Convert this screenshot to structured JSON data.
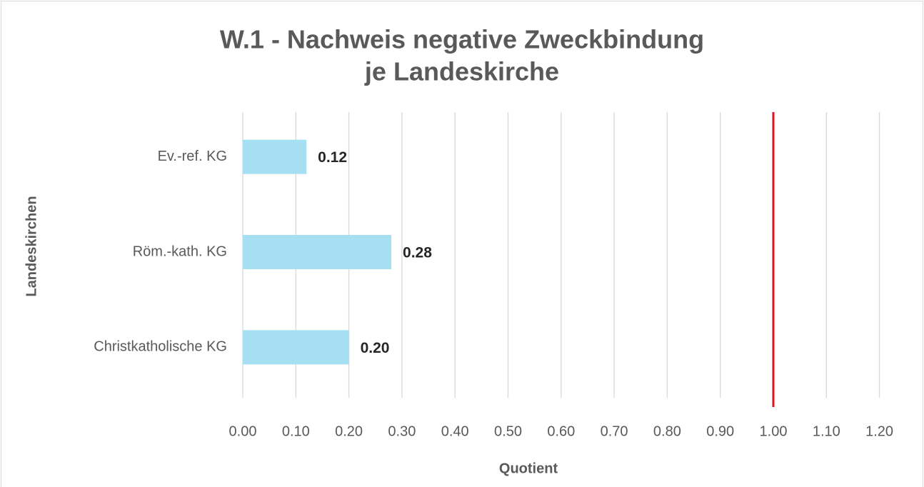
{
  "chart_data": {
    "type": "hbar",
    "title": [
      "W.1 - Nachweis negative Zweckbindung",
      "je Landeskirche"
    ],
    "x_label": "Quotient",
    "y_label": "Landeskirchen",
    "categories": [
      "Ev.-ref. KG",
      "Röm.-kath. KG",
      "Christkatholische KG"
    ],
    "values": [
      0.12,
      0.28,
      0.2
    ],
    "value_labels": [
      "0.12",
      "0.28",
      "0.20"
    ],
    "color": "#a6dff2",
    "xlim": [
      0,
      1.2
    ],
    "xticks": [
      {
        "value": 0,
        "label": "0.00"
      },
      {
        "value": 0.1,
        "label": "0.10"
      },
      {
        "value": 0.2,
        "label": "0.20"
      },
      {
        "value": 0.3,
        "label": "0.30"
      },
      {
        "value": 0.4,
        "label": "0.40"
      },
      {
        "value": 0.5,
        "label": "0.50"
      },
      {
        "value": 0.6,
        "label": "0.60"
      },
      {
        "value": 0.7,
        "label": "0.70"
      },
      {
        "value": 0.8,
        "label": "0.80"
      },
      {
        "value": 0.9,
        "label": "0.90"
      },
      {
        "value": 1,
        "label": "1.00"
      },
      {
        "value": 1.1,
        "label": "1.10"
      },
      {
        "value": 1.2,
        "label": "1.20"
      }
    ],
    "grid": true,
    "reference_line": {
      "value": 1,
      "color": "#e0141e"
    }
  }
}
